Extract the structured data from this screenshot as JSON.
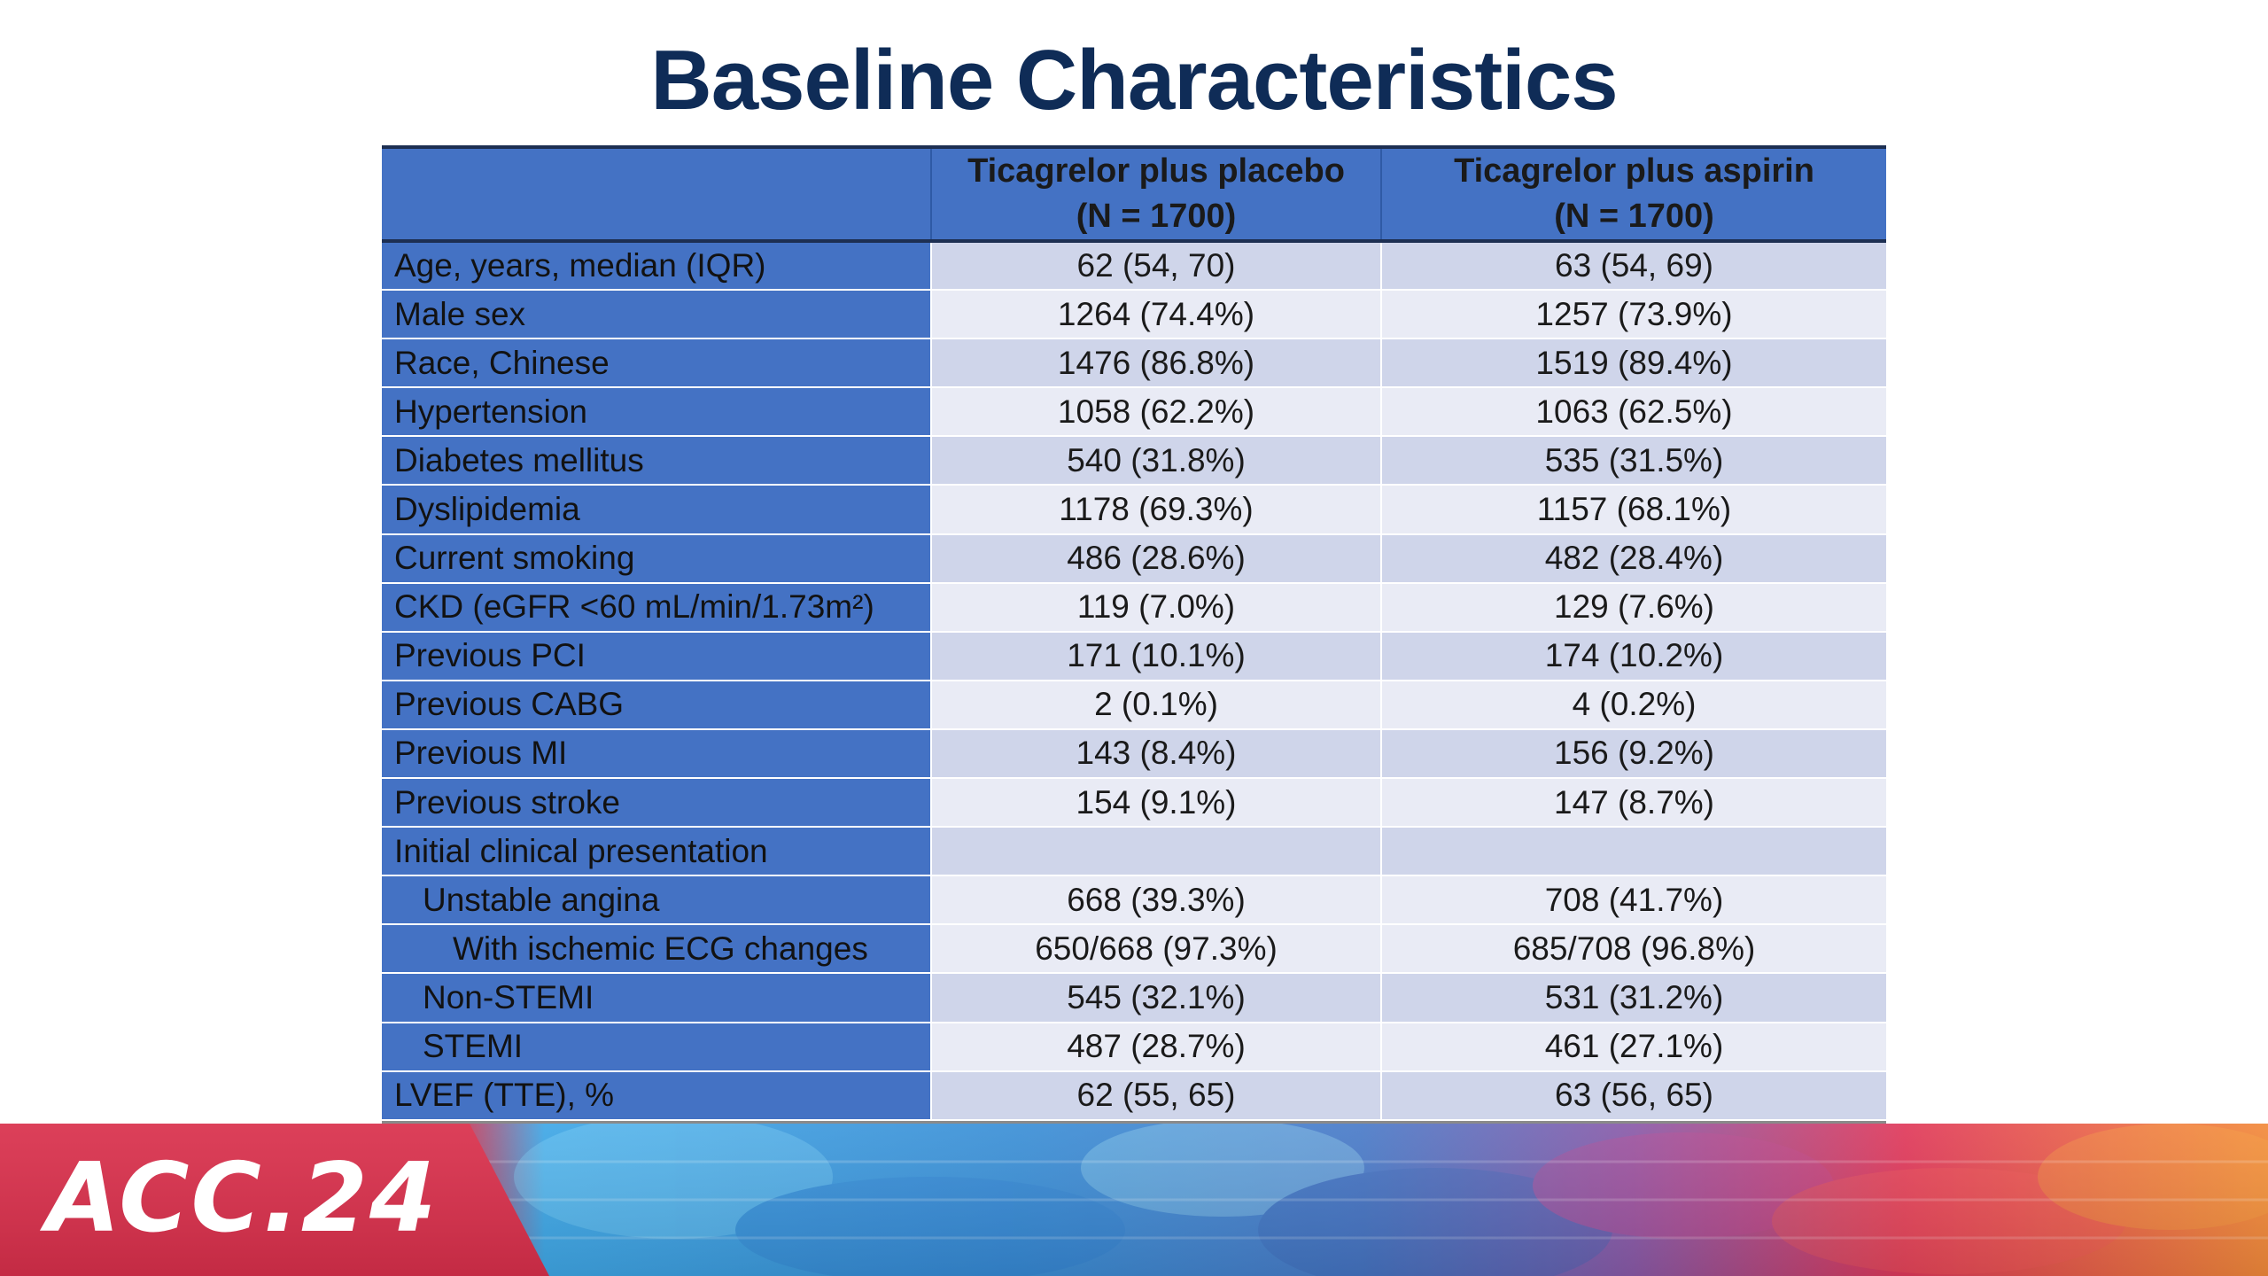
{
  "title": "Baseline Characteristics",
  "table": {
    "headers": [
      "",
      "Ticagrelor plus placebo\n(N = 1700)",
      "Ticagrelor plus aspirin\n(N = 1700)"
    ],
    "header_lines": {
      "col1_line1": "Ticagrelor plus placebo",
      "col1_line2": "(N = 1700)",
      "col2_line1": "Ticagrelor plus aspirin",
      "col2_line2": "(N = 1700)"
    },
    "rows": [
      {
        "label": "Age, years, median (IQR)",
        "placebo": "62 (54, 70)",
        "aspirin": "63 (54, 69)"
      },
      {
        "label": "Male sex",
        "placebo": "1264 (74.4%)",
        "aspirin": "1257 (73.9%)"
      },
      {
        "label": "Race, Chinese",
        "placebo": "1476 (86.8%)",
        "aspirin": "1519 (89.4%)"
      },
      {
        "label": "Hypertension",
        "placebo": "1058 (62.2%)",
        "aspirin": "1063 (62.5%)"
      },
      {
        "label": "Diabetes mellitus",
        "placebo": "540 (31.8%)",
        "aspirin": "535 (31.5%)"
      },
      {
        "label": "Dyslipidemia",
        "placebo": "1178 (69.3%)",
        "aspirin": "1157 (68.1%)"
      },
      {
        "label": "Current smoking",
        "placebo": "486 (28.6%)",
        "aspirin": "482 (28.4%)"
      },
      {
        "label": "CKD (eGFR <60 mL/min/1.73m²)",
        "placebo": "119 (7.0%)",
        "aspirin": "129 (7.6%)"
      },
      {
        "label": "Previous PCI",
        "placebo": "171 (10.1%)",
        "aspirin": "174 (10.2%)"
      },
      {
        "label": "Previous CABG",
        "placebo": "2 (0.1%)",
        "aspirin": "4 (0.2%)"
      },
      {
        "label": "Previous MI",
        "placebo": "143 (8.4%)",
        "aspirin": "156 (9.2%)"
      },
      {
        "label": "Previous stroke",
        "placebo": "154 (9.1%)",
        "aspirin": "147 (8.7%)"
      },
      {
        "label": "Initial clinical presentation",
        "placebo": "",
        "aspirin": ""
      },
      {
        "label": "Unstable angina",
        "placebo": "668 (39.3%)",
        "aspirin": "708 (41.7%)"
      },
      {
        "label": "With ischemic ECG changes",
        "placebo": "650/668 (97.3%)",
        "aspirin": "685/708 (96.8%)"
      },
      {
        "label": "Non-STEMI",
        "placebo": "545 (32.1%)",
        "aspirin": "531 (31.2%)"
      },
      {
        "label": "STEMI",
        "placebo": "487 (28.7%)",
        "aspirin": "461 (27.1%)"
      },
      {
        "label": "LVEF (TTE), %",
        "placebo": "62 (55, 65)",
        "aspirin": "63 (56, 65)"
      }
    ]
  },
  "banner": {
    "logo_text": "ACC.24"
  },
  "colors": {
    "title": "#0f2c57",
    "header_fill": "#4472c4",
    "row_dark": "#cfd5ea",
    "row_light": "#e9ebf5",
    "banner_red": "#d9304a",
    "banner_blue": "#3a9ee0",
    "banner_orange": "#f07a3a"
  }
}
